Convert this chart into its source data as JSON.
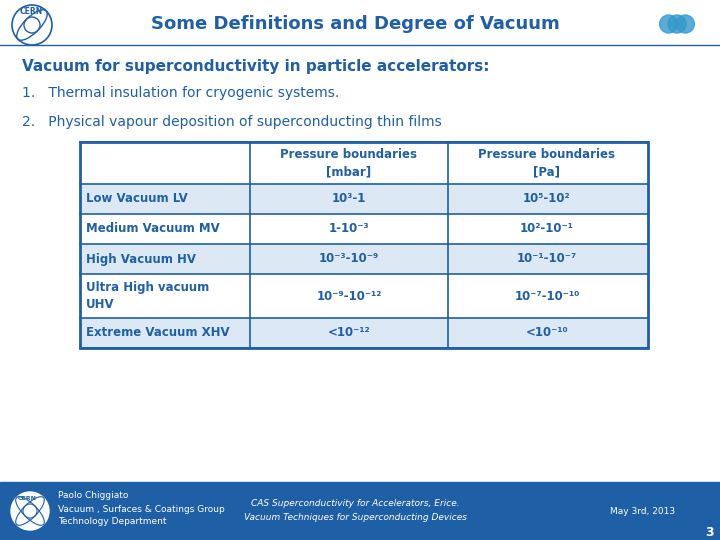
{
  "title": "Some Definitions and Degree of Vacuum",
  "background_color": "#ffffff",
  "main_text_color": "#1f5fa6",
  "dark_blue": "#1f5fa6",
  "table_header_bg": "#ffffff",
  "subtitle": "Vacuum for superconductivity in particle accelerators:",
  "point1": "1.   Thermal insulation for cryogenic systems.",
  "point2": "2.   Physical vapour deposition of superconducting thin films",
  "col_headers": [
    "",
    "Pressure boundaries\n[mbar]",
    "Pressure boundaries\n[Pa]"
  ],
  "rows": [
    [
      "Low Vacuum LV",
      "10³-1",
      "10⁵-10²"
    ],
    [
      "Medium Vacuum MV",
      "1-10⁻³",
      "10²-10⁻¹"
    ],
    [
      "High Vacuum HV",
      "10⁻³-10⁻⁹",
      "10⁻¹-10⁻⁷"
    ],
    [
      "Ultra High vacuum\nUHV",
      "10⁻⁹-10⁻¹²",
      "10⁻⁷-10⁻¹⁰"
    ],
    [
      "Extreme Vacuum XHV",
      "<10⁻¹²",
      "<10⁻¹⁰"
    ]
  ],
  "footer_bg": "#1f5fa6",
  "footer_left1": "Paolo Chiggiato",
  "footer_left2": "Vacuum , Surfaces & Coatings Group",
  "footer_left3": "Technology Department",
  "footer_mid1": "CAS Superconductivity for Accelerators, Erice.",
  "footer_mid2": "Vacuum Techniques for Superconducting Devices",
  "footer_right": "May 3rd, 2013",
  "footer_page": "3"
}
